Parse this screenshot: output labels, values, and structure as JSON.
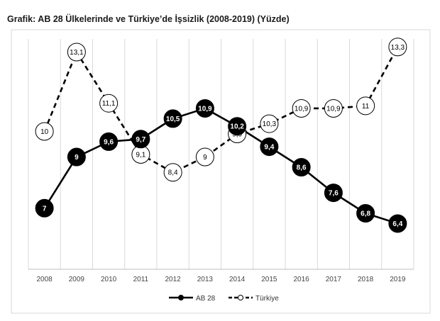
{
  "chart_data": {
    "type": "line",
    "title": "Grafik: AB 28 Ülkelerinde ve Türkiye’de İşsizlik (2008-2019) (Yüzde)",
    "xlabel": "",
    "ylabel": "",
    "x": [
      "2008",
      "2009",
      "2010",
      "2011",
      "2012",
      "2013",
      "2014",
      "2015",
      "2016",
      "2017",
      "2018",
      "2019"
    ],
    "ylim": [
      5,
      14
    ],
    "grid": "vertical",
    "legend": "bottom",
    "series": [
      {
        "name": "AB 28",
        "values": [
          7,
          9,
          9.6,
          9.7,
          10.5,
          10.9,
          10.2,
          9.4,
          8.6,
          7.6,
          6.8,
          6.4
        ],
        "labels": [
          "7",
          "9",
          "9,6",
          "9,7",
          "10,5",
          "10,9",
          "10,2",
          "9,4",
          "8,6",
          "7,6",
          "6,8",
          "6,4"
        ],
        "color": "#000000",
        "style": "solid",
        "marker_fill": "#000000",
        "label_color": "#ffffff"
      },
      {
        "name": "Türkiye",
        "values": [
          10,
          13.1,
          11.1,
          9.1,
          8.4,
          9,
          9.9,
          10.3,
          10.9,
          10.9,
          11,
          13.3
        ],
        "labels": [
          "10",
          "13,1",
          "11,1",
          "9,1",
          "8,4",
          "9",
          "9,9",
          "10,3",
          "10,9",
          "10,9",
          "11",
          "13,3"
        ],
        "color": "#000000",
        "style": "dashed",
        "marker_fill": "#ffffff",
        "label_color": "#000000"
      }
    ]
  }
}
